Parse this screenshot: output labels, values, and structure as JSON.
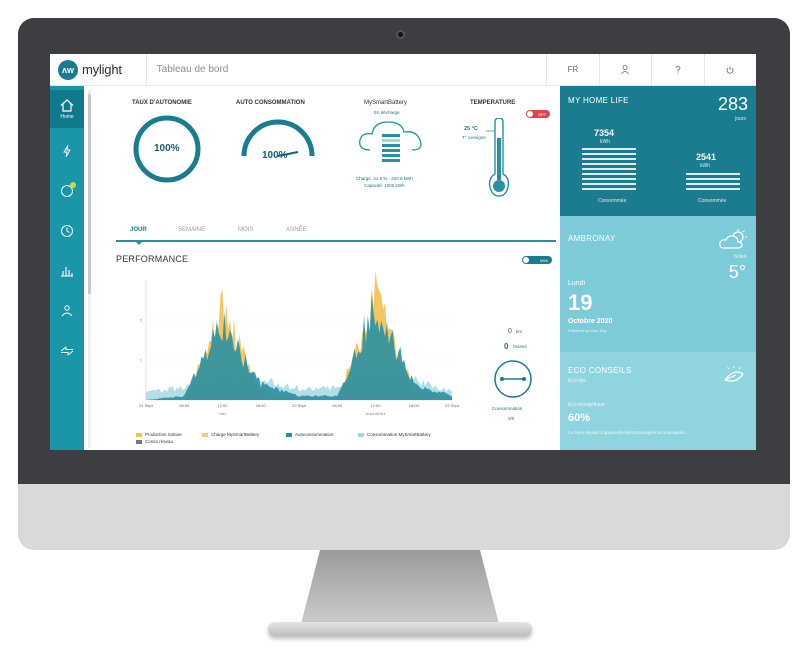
{
  "topbar": {
    "logo_mark": "ʌw",
    "logo_text": "mylight",
    "page_title": "Tableau de bord",
    "lang": "FR"
  },
  "sidebar": {
    "home_label": "Home"
  },
  "widgets": {
    "autonomie": {
      "title": "TAUX D'AUTONOMIE",
      "value": "100%"
    },
    "autoconso": {
      "title": "AUTO CONSOMMATION",
      "value": "100%"
    },
    "battery": {
      "title": "MySmartBattery",
      "subtitle": "En décharge",
      "charge": "Charge: 31.9 % - 320.6 kWh",
      "capacity": "Capacité: 1000 kWh"
    },
    "temperature": {
      "title": "TEMPERATURE",
      "toggle": "OFF",
      "value": "25 °C",
      "subtitle": "T° consigne"
    }
  },
  "tabs": [
    "JOUR",
    "SEMAINE",
    "MOIS",
    "ANNÉE"
  ],
  "performance": {
    "title": "PERFORMANCE",
    "toggle": "kWh",
    "side_value_top": "0",
    "side_unit_top": "km",
    "side_value_mid": "0",
    "side_unit_mid": "heures",
    "side_caption": "Consommation",
    "side_footer": "0/0",
    "x_axis_label": "Hier",
    "x_axis_label_2": "Aujourd'hui"
  },
  "legend": [
    {
      "label": "Production Solaire",
      "color": "#f2c14e"
    },
    {
      "label": "Charge MySmartBattery",
      "color": "#e8d27a"
    },
    {
      "label": "Autoconsommation",
      "color": "#2a8fa3"
    },
    {
      "label": "Consommation MySmartBattery",
      "color": "#9fd6e0"
    },
    {
      "label": "Conso réseau",
      "color": "#6b7b84"
    }
  ],
  "chart_data": {
    "type": "area",
    "x": [
      "21 Sept",
      "06:00",
      "12:00",
      "18:00",
      "22 Sept",
      "06:00",
      "12:00",
      "18:00",
      "22 Sept"
    ],
    "y_ticks": [
      "2",
      "1"
    ],
    "series": [
      {
        "name": "Production Solaire",
        "values": [
          0,
          0,
          2.3,
          0.2,
          0,
          0,
          2.6,
          0.3,
          0
        ]
      },
      {
        "name": "Autoconsommation",
        "values": [
          0,
          0.1,
          1.9,
          0.4,
          0.1,
          0.1,
          2.4,
          0.4,
          0.1
        ]
      },
      {
        "name": "Consommation MySmartBattery",
        "values": [
          0.2,
          0.3,
          0.6,
          0.5,
          0.3,
          0.3,
          0.7,
          0.5,
          0.2
        ]
      }
    ]
  },
  "home_life": {
    "title": "MY HOME LIFE",
    "total": "283",
    "total_unit": "jours",
    "left_value": "7354",
    "left_unit": "kWh",
    "left_caption": "Consommée",
    "right_value": "2541",
    "right_unit": "kWh",
    "right_caption": "Consommée"
  },
  "weather": {
    "city": "AMBRONAY",
    "condition": "Soleil",
    "temperature": "5°",
    "day": "Lundi",
    "date_num": "19",
    "month_year": "Octobre 2020",
    "powered": "Powered by Dark Sky"
  },
  "eco": {
    "title": "ECO CONSEILS",
    "subtitle": "Eco-tips",
    "category": "Eco-énergétique",
    "percent": "60%",
    "text": "Le foyer équipé d'appareils électroménagers économiques..."
  }
}
